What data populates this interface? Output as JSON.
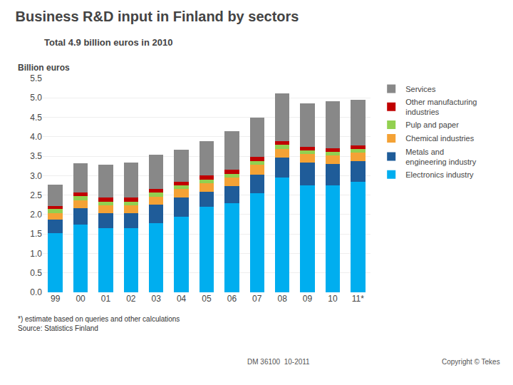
{
  "chart_data": {
    "type": "bar",
    "stacked": true,
    "title": "Business R&D input in Finland by sectors",
    "subtitle": "Total 4.9 billion euros in 2010",
    "ylabel": "Billion euros",
    "categories": [
      "99",
      "00",
      "01",
      "02",
      "03",
      "04",
      "05",
      "06",
      "07",
      "08",
      "09",
      "10",
      "11*"
    ],
    "series": [
      {
        "name": "Electronics industry",
        "color": "#00AEEF",
        "values": [
          1.52,
          1.75,
          1.65,
          1.65,
          1.78,
          1.95,
          2.2,
          2.3,
          2.55,
          2.95,
          2.75,
          2.75,
          2.85
        ]
      },
      {
        "name": "Metals and\nengineering industry",
        "color": "#1F5C99",
        "values": [
          0.35,
          0.42,
          0.38,
          0.38,
          0.48,
          0.48,
          0.38,
          0.43,
          0.48,
          0.52,
          0.58,
          0.55,
          0.52
        ]
      },
      {
        "name": "Chemical industries",
        "color": "#F4A235",
        "values": [
          0.17,
          0.2,
          0.2,
          0.2,
          0.2,
          0.22,
          0.22,
          0.22,
          0.25,
          0.22,
          0.22,
          0.22,
          0.22
        ]
      },
      {
        "name": "Pulp and paper",
        "color": "#92D050",
        "values": [
          0.1,
          0.1,
          0.1,
          0.1,
          0.1,
          0.1,
          0.1,
          0.1,
          0.1,
          0.1,
          0.09,
          0.09,
          0.09
        ]
      },
      {
        "name": "Other manufacturing\nindustries",
        "color": "#C00000",
        "values": [
          0.08,
          0.1,
          0.1,
          0.1,
          0.1,
          0.1,
          0.1,
          0.1,
          0.1,
          0.1,
          0.1,
          0.1,
          0.1
        ]
      },
      {
        "name": "Services",
        "color": "#888888",
        "values": [
          0.55,
          0.75,
          0.85,
          0.9,
          0.87,
          0.82,
          0.88,
          1.0,
          1.02,
          1.22,
          1.11,
          1.2,
          1.17
        ]
      }
    ],
    "ylim": [
      0,
      5.5
    ],
    "yticks": [
      {
        "value": 0.0,
        "label": "0.0"
      },
      0.5,
      {
        "value": 1.0,
        "label": "1.0"
      },
      1.5,
      {
        "value": 2.0,
        "label": "2.0"
      },
      2.5,
      {
        "value": 3.0,
        "label": "3.0"
      },
      3.5,
      {
        "value": 4.0,
        "label": "4.0"
      },
      4.5,
      {
        "value": 5.0,
        "label": "5.0"
      },
      5.5
    ],
    "grid": true,
    "legend": "right",
    "annotations": [
      "*) estimate based on queries and other calculations\nSource: Statistics Finland",
      "DM 36100  10-2011",
      "Copyright © Tekes"
    ]
  }
}
